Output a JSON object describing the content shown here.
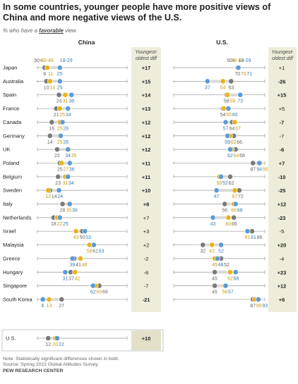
{
  "title": "In some countries, younger people have more positive views of China and more negative views of the U.S.",
  "subtitle_prefix": "% who have a",
  "subtitle_emphasis": "favorable",
  "subtitle_suffix": "view",
  "colors": {
    "young": "#5B9BD5",
    "middle": "#E8B41C",
    "old": "#7A7A7A",
    "highlight_band": "#EEEDDA",
    "track": "#9A9A9A",
    "connector": "#D9D9D9"
  },
  "legend_labels": {
    "old": "50+",
    "middle": "30-49",
    "young": "18-29"
  },
  "chart_data": {
    "type": "dot-plot",
    "panels": [
      {
        "name": "China",
        "diff_header": [
          "Youngest-",
          "oldest diff"
        ]
      },
      {
        "name": "U.S.",
        "diff_header": [
          "Youngest-",
          "oldest diff"
        ]
      }
    ],
    "series": [
      "18-29",
      "30-49",
      "50+"
    ],
    "countries": [
      {
        "name": "Japan",
        "china": {
          "young": 25,
          "middle": 11,
          "old": 8,
          "diff": "+17",
          "sig": true
        },
        "us": {
          "young": 71,
          "middle": 70,
          "old": 70,
          "diff": "+1",
          "sig": false
        }
      },
      {
        "name": "Australia",
        "china": {
          "young": 25,
          "middle": 14,
          "old": 10,
          "diff": "+15",
          "sig": true
        },
        "us": {
          "young": 37,
          "middle": 54,
          "old": 63,
          "diff": "-26",
          "sig": true
        }
      },
      {
        "name": "Spain",
        "china": {
          "young": 38,
          "middle": 31,
          "old": 24,
          "diff": "+14",
          "sig": true
        },
        "us": {
          "young": 73,
          "middle": 59,
          "old": 58,
          "diff": "+15",
          "sig": true
        }
      },
      {
        "name": "France",
        "china": {
          "young": 34,
          "middle": 25,
          "old": 21,
          "diff": "+13",
          "sig": true
        },
        "us": {
          "young": 60,
          "middle": 55,
          "old": 54,
          "diff": "+5",
          "sig": false
        }
      },
      {
        "name": "Canada",
        "china": {
          "young": 28,
          "middle": 25,
          "old": 16,
          "diff": "+12",
          "sig": true
        },
        "us": {
          "young": 57,
          "middle": 67,
          "old": 64,
          "diff": "-7",
          "sig": true
        }
      },
      {
        "name": "Germany",
        "china": {
          "young": 26,
          "middle": 25,
          "old": 14,
          "diff": "+12",
          "sig": true
        },
        "us": {
          "young": 59,
          "middle": 62,
          "old": 66,
          "diff": "-7",
          "sig": false
        }
      },
      {
        "name": "UK",
        "china": {
          "young": 34,
          "middle": 35,
          "old": 22,
          "diff": "+12",
          "sig": true
        },
        "us": {
          "young": 62,
          "middle": 64,
          "old": 68,
          "diff": "-6",
          "sig": true
        }
      },
      {
        "name": "Poland",
        "china": {
          "young": 36,
          "middle": 27,
          "old": 25,
          "diff": "+11",
          "sig": true
        },
        "us": {
          "young": 94,
          "middle": 95,
          "old": 87,
          "diff": "+7",
          "sig": true
        }
      },
      {
        "name": "Belgium",
        "china": {
          "young": 34,
          "middle": 31,
          "old": 23,
          "diff": "+11",
          "sig": true
        },
        "us": {
          "young": 52,
          "middle": 50,
          "old": 62,
          "diff": "-10",
          "sig": true
        }
      },
      {
        "name": "Sweden",
        "china": {
          "young": 24,
          "middle": 12,
          "old": 14,
          "diff": "+10",
          "sig": true
        },
        "us": {
          "young": 47,
          "middle": 67,
          "old": 72,
          "diff": "-25",
          "sig": true
        }
      },
      {
        "name": "Italy",
        "china": {
          "young": 36,
          "middle": 35,
          "old": 28,
          "diff": "+8",
          "sig": true
        },
        "us": {
          "young": 68,
          "middle": 66,
          "old": 56,
          "diff": "+12",
          "sig": true
        }
      },
      {
        "name": "Netherlands",
        "china": {
          "young": 25,
          "middle": 22,
          "old": 18,
          "diff": "+7",
          "sig": false
        },
        "us": {
          "young": 43,
          "middle": 60,
          "old": 66,
          "diff": "-23",
          "sig": true
        }
      },
      {
        "name": "Israel",
        "china": {
          "young": 53,
          "middle": 43,
          "old": 50,
          "diff": "+3",
          "sig": false
        },
        "us": {
          "young": 81,
          "middle": 81,
          "old": 86,
          "diff": "-5",
          "sig": false
        }
      },
      {
        "name": "Malaysia",
        "china": {
          "young": 63,
          "middle": 58,
          "old": 61,
          "diff": "+2",
          "sig": false
        },
        "us": {
          "young": 52,
          "middle": 42,
          "old": 32,
          "diff": "+20",
          "sig": true
        }
      },
      {
        "name": "Greece",
        "china": {
          "young": 39,
          "middle": 48,
          "old": 41,
          "diff": "-2",
          "sig": false
        },
        "us": {
          "young": 48,
          "middle": 45,
          "old": 52,
          "diff": "-4",
          "sig": false
        }
      },
      {
        "name": "Hungary",
        "china": {
          "young": 31,
          "middle": 42,
          "old": 37,
          "diff": "-6",
          "sig": false
        },
        "us": {
          "young": 68,
          "middle": 62,
          "old": 45,
          "diff": "+23",
          "sig": true
        }
      },
      {
        "name": "Singapore",
        "china": {
          "young": 62,
          "middle": 65,
          "old": 69,
          "diff": "-7",
          "sig": false
        },
        "us": {
          "young": 57,
          "middle": 56,
          "old": 45,
          "diff": "+12",
          "sig": true
        }
      },
      {
        "name": "South Korea",
        "china": {
          "young": 6,
          "middle": 13,
          "old": 27,
          "diff": "-21",
          "sig": true
        },
        "us": {
          "young": 93,
          "middle": 89,
          "old": 87,
          "diff": "+6",
          "sig": true
        }
      }
    ],
    "us_row": {
      "name": "U.S.",
      "china": {
        "young": 22,
        "middle": 20,
        "old": 12,
        "diff": "+10",
        "sig": true
      }
    },
    "xlim": [
      0,
      100
    ]
  },
  "notes": {
    "note": "Note: Statistically significant differences shown in bold.",
    "source": "Source: Spring 2022 Global Attitudes Survey.",
    "org": "PEW RESEARCH CENTER"
  }
}
